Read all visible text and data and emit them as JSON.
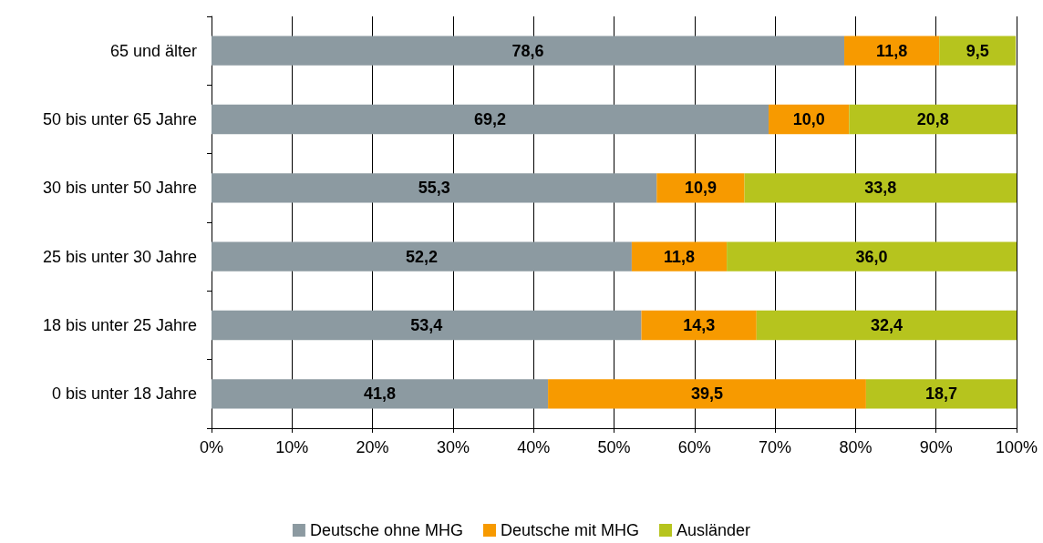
{
  "chart_data": {
    "type": "bar",
    "orientation": "horizontal",
    "stacked": true,
    "categories": [
      "65 und älter",
      "50 bis unter 65 Jahre",
      "30 bis unter 50 Jahre",
      "25 bis unter 30 Jahre",
      "18 bis unter 25 Jahre",
      "0 bis unter 18 Jahre"
    ],
    "series": [
      {
        "name": "Deutsche ohne MHG",
        "color": "#8c9aa1",
        "values": [
          78.6,
          69.2,
          55.3,
          52.2,
          53.4,
          41.8
        ],
        "value_labels": [
          "78,6",
          "69,2",
          "55,3",
          "52,2",
          "53,4",
          "41,8"
        ]
      },
      {
        "name": "Deutsche mit MHG",
        "color": "#f79a00",
        "values": [
          11.8,
          10.0,
          10.9,
          11.8,
          14.3,
          39.5
        ],
        "value_labels": [
          "11,8",
          "10,0",
          "10,9",
          "11,8",
          "14,3",
          "39,5"
        ]
      },
      {
        "name": "Ausländer",
        "color": "#b6c41e",
        "values": [
          9.5,
          20.8,
          33.8,
          36.0,
          32.4,
          18.7
        ],
        "value_labels": [
          "9,5",
          "20,8",
          "33,8",
          "36,0",
          "32,4",
          "18,7"
        ]
      }
    ],
    "xlim": [
      0,
      100
    ],
    "xticks": [
      {
        "value": 0,
        "label": "0%"
      },
      {
        "value": 10,
        "label": "10%"
      },
      {
        "value": 20,
        "label": "20%"
      },
      {
        "value": 30,
        "label": "30%"
      },
      {
        "value": 40,
        "label": "40%"
      },
      {
        "value": 50,
        "label": "50%"
      },
      {
        "value": 60,
        "label": "60%"
      },
      {
        "value": 70,
        "label": "70%"
      },
      {
        "value": 80,
        "label": "80%"
      },
      {
        "value": 90,
        "label": "90%"
      },
      {
        "value": 100,
        "label": "100%"
      }
    ],
    "grid": "x",
    "legend": "bottom"
  }
}
